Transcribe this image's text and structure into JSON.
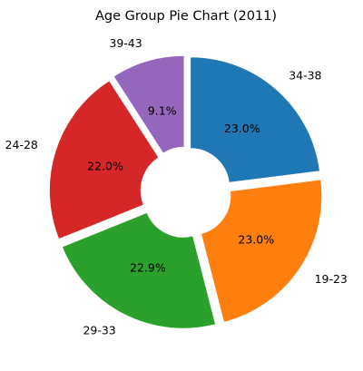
{
  "chart_data": {
    "type": "pie",
    "title": "Age Group Pie Chart (2011)",
    "donut": true,
    "exploded": true,
    "start_angle_deg": 90,
    "direction": "clockwise",
    "slices": [
      {
        "label": "34-38",
        "value": 23.0,
        "pct_label": "23.0%",
        "color": "#1f77b4"
      },
      {
        "label": "19-23",
        "value": 23.0,
        "pct_label": "23.0%",
        "color": "#ff7f0e"
      },
      {
        "label": "29-33",
        "value": 22.9,
        "pct_label": "22.9%",
        "color": "#2ca02c"
      },
      {
        "label": "24-28",
        "value": 22.0,
        "pct_label": "22.0%",
        "color": "#d62728"
      },
      {
        "label": "39-43",
        "value": 9.1,
        "pct_label": "9.1%",
        "color": "#9467bd"
      }
    ]
  }
}
